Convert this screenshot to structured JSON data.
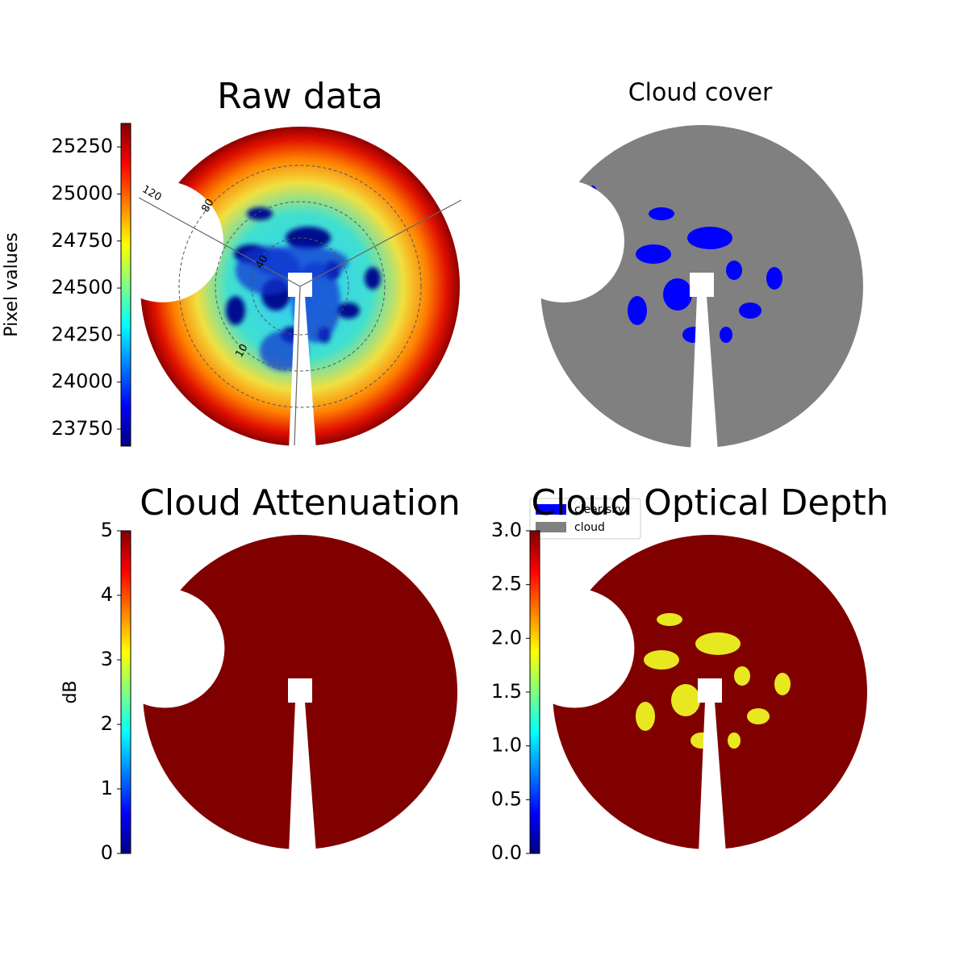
{
  "chart_data": [
    {
      "type": "image",
      "title": "Raw data",
      "colorbar_label": "Pixel values",
      "colormap": "jet",
      "clim": [
        23660,
        25375
      ],
      "cticks": [
        23750,
        24000,
        24250,
        24500,
        24750,
        25000,
        25250
      ],
      "polar_labels": [
        "120",
        "80",
        "40",
        "10"
      ]
    },
    {
      "type": "categorical-image",
      "title": "Cloud cover",
      "legend": [
        {
          "name": "clear sky",
          "color": "#0000ff"
        },
        {
          "name": "cloud",
          "color": "#808080"
        }
      ]
    },
    {
      "type": "image",
      "title": "Cloud Attenuation",
      "colorbar_label": "dB",
      "colormap": "jet",
      "clim": [
        0,
        5
      ],
      "cticks": [
        0,
        1,
        2,
        3,
        4,
        5
      ]
    },
    {
      "type": "image",
      "title": "Cloud Optical Depth",
      "colormap": "jet",
      "clim": [
        0,
        3
      ],
      "cticks": [
        {
          "value": 0,
          "label": "0.0"
        },
        {
          "value": 0.5,
          "label": "0.5"
        },
        {
          "value": 1,
          "label": "1.0"
        },
        {
          "value": 1.5,
          "label": "1.5"
        },
        {
          "value": 2,
          "label": "2.0"
        },
        {
          "value": 2.5,
          "label": "2.5"
        },
        {
          "value": 3,
          "label": "3.0"
        }
      ]
    }
  ]
}
